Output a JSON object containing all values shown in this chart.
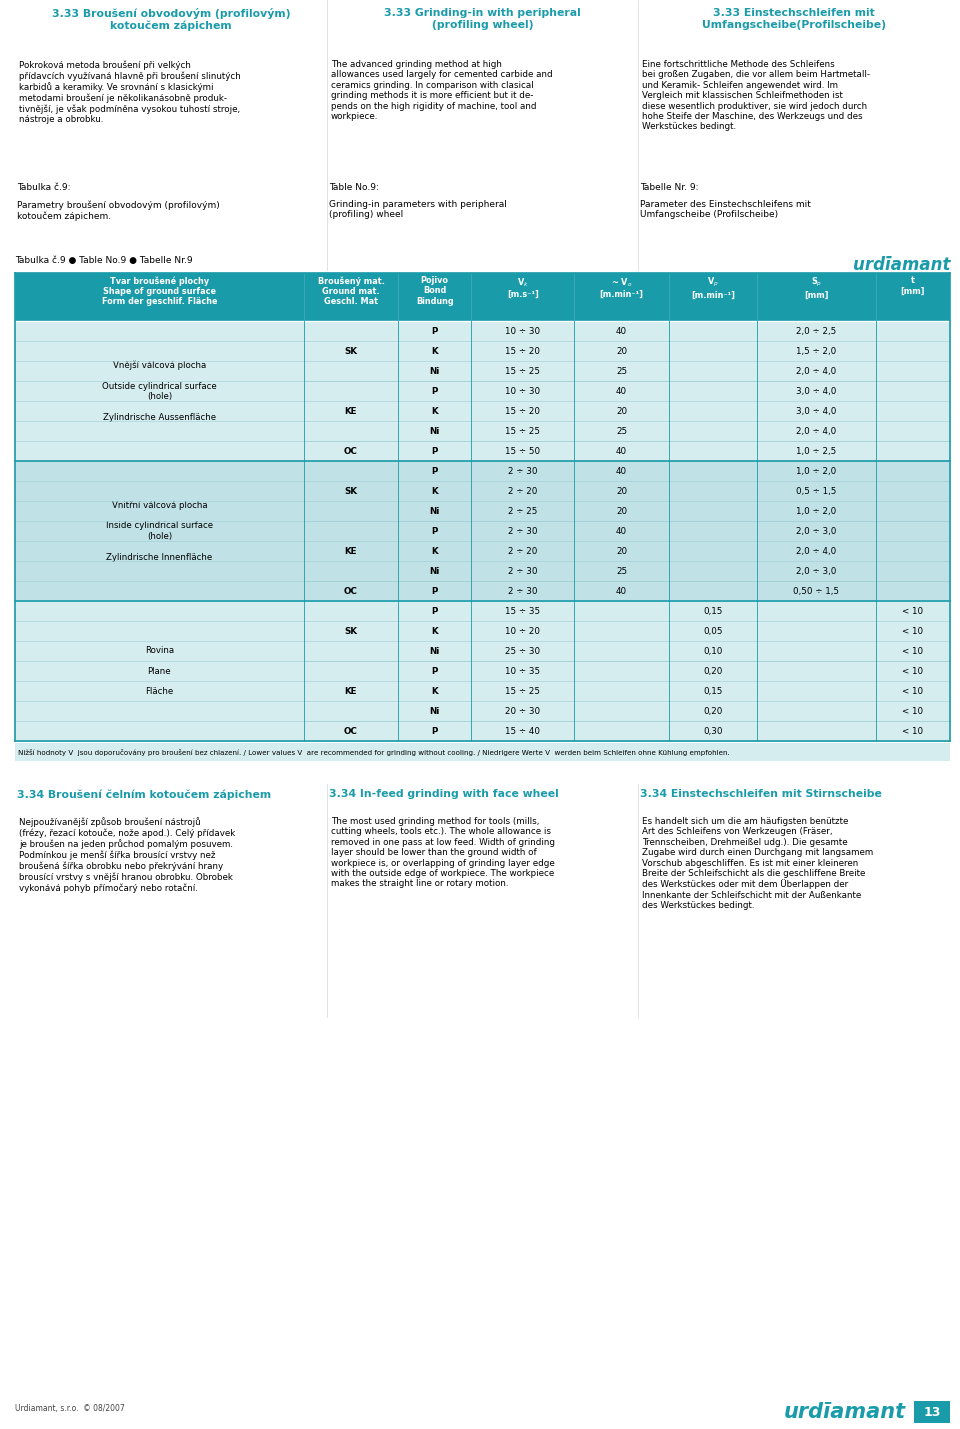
{
  "bg_color": "#ffffff",
  "teal_color": "#1a9baa",
  "teal_header": "#1a9baa",
  "teal_dark": "#0d7a88",
  "teal_light1": "#d6edf0",
  "teal_light2": "#c0e2e7",
  "page_width": 9.6,
  "page_height": 14.29,
  "sec1_title_cz": "3.33 Broušení obvodovým (profilovým)\nkotoučem zápichem",
  "sec1_title_en": "3.33 Grinding-in with peripheral\n(profiling wheel)",
  "sec1_title_de": "3.33 Einstechschleifen mit\nUmfangscheibe(Profilscheibe)",
  "sec1_body_cz": "Pokroková metoda broušení při velkých\npřídavcích využívaná hlavně při broušení slinutých\nkarbidů a keramiky. Ve srovnání s klasickými\nmetodami broušení je několikanásobně produk-\ntivnější, je však podmíněna vysokou tuhostí stroje,\nnástroje a obrobku.",
  "sec1_body_en": "The advanced grinding method at high\nallowances used largely for cemented carbide and\nceramics grinding. In comparison with clasical\ngrinding methods it is more efficient but it de-\npends on the high rigidity of machine, tool and\nworkpiece.",
  "sec1_body_de": "Eine fortschrittliche Methode des Schleifens\nbei großen Zugaben, die vor allem beim Hartmetall-\nund Keramik- Schleifen angewendet wird. Im\nVergleich mit klassischen Schleifmethoden ist\ndiese wesentlich produktiver, sie wird jedoch durch\nhohe Steife der Maschine, des Werkzeugs und des\nWerkstückes bedingt.",
  "lbl_cz": "Tabulka č.9:",
  "lbl_en": "Table No.9:",
  "lbl_de": "Tabelle Nr. 9:",
  "desc_cz": "Parametry broušení obvodovým (profilovým)\nkotoučem zápichem.",
  "desc_en": "Grinding-in parameters with peripheral\n(profiling) wheel",
  "desc_de": "Parameter des Einstechschleifens mit\nUmfangscheibe (Profilscheibe)",
  "table_note": "Tabulka č.9 ● Table No.9 ● Tabelle Nr.9",
  "footnote": "Nižší hodnoty V  jsou doporučovány pro broušení bez chlazení. / Lower values V  are recommended for grinding without cooling. / Niedrigere Werte V  werden beim Schleifen ohne Kühlung empfohlen.",
  "sec2_title_cz": "3.34 Broušení čelním kotoučem zápichem",
  "sec2_title_en": "3.34 In-feed grinding with face wheel",
  "sec2_title_de": "3.34 Einstechschleifen mit Stirnscheibe",
  "sec2_body_cz": "Nejpoužívanější způsob broušení nástrojů\n(frézy, řezací kotouče, nože apod.). Celý přídavek\nje broušen na jeden průchod pomalým posuvem.\nPodmínkou je menší šířka brousící vrstvy než\nbroušená šířka obrobku nebo překrývání hrany\nbrousící vrstvy s vnější hranou obrobku. Obrobek\nvykonává pohyb přímočarý nebo rotační.",
  "sec2_body_en": "The most used grinding method for tools (mills,\ncutting wheels, tools etc.). The whole allowance is\nremoved in one pass at low feed. Width of grinding\nlayer should be lower than the ground width of\nworkpiece is, or overlapping of grinding layer edge\nwith the outside edge of workpiece. The workpiece\nmakes the straight line or rotary motion.",
  "sec2_body_de": "Es handelt sich um die am häufigsten benützte\nArt des Schleifens von Werkzeugen (Fräser,\nTrennscheiben, Drehmeißel udg.). Die gesamte\nZugabe wird durch einen Durchgang mit langsamem\nVorschub abgeschliffen. Es ist mit einer kleineren\nBreite der Schleifschicht als die geschliffene Breite\ndes Werkstückes oder mit dem Überlappen der\nInnenkante der Schleifschicht mit der Außenkante\ndes Werkstückes bedingt.",
  "footer_text": "Urdiamant, s.r.o.  © 08/2007",
  "page_number": "13",
  "rows": [
    {
      "sec": 0,
      "bond": "P",
      "vk": "10 ÷ 30",
      "vo": "40",
      "vp": "",
      "sp": "2,0 ÷ 2,5",
      "t": ""
    },
    {
      "sec": 0,
      "bond": "K",
      "vk": "15 ÷ 20",
      "vo": "20",
      "vp": "",
      "sp": "1,5 ÷ 2,0",
      "t": ""
    },
    {
      "sec": 0,
      "bond": "Ni",
      "vk": "15 ÷ 25",
      "vo": "25",
      "vp": "",
      "sp": "2,0 ÷ 4,0",
      "t": ""
    },
    {
      "sec": 0,
      "bond": "P",
      "vk": "10 ÷ 30",
      "vo": "40",
      "vp": "",
      "sp": "3,0 ÷ 4,0",
      "t": ""
    },
    {
      "sec": 0,
      "bond": "K",
      "vk": "15 ÷ 20",
      "vo": "20",
      "vp": "",
      "sp": "3,0 ÷ 4,0",
      "t": ""
    },
    {
      "sec": 0,
      "bond": "Ni",
      "vk": "15 ÷ 25",
      "vo": "25",
      "vp": "",
      "sp": "2,0 ÷ 4,0",
      "t": ""
    },
    {
      "sec": 0,
      "bond": "P",
      "vk": "15 ÷ 50",
      "vo": "40",
      "vp": "",
      "sp": "1,0 ÷ 2,5",
      "t": ""
    },
    {
      "sec": 1,
      "bond": "P",
      "vk": "2 ÷ 30",
      "vo": "40",
      "vp": "",
      "sp": "1,0 ÷ 2,0",
      "t": ""
    },
    {
      "sec": 1,
      "bond": "K",
      "vk": "2 ÷ 20",
      "vo": "20",
      "vp": "",
      "sp": "0,5 ÷ 1,5",
      "t": ""
    },
    {
      "sec": 1,
      "bond": "Ni",
      "vk": "2 ÷ 25",
      "vo": "20",
      "vp": "",
      "sp": "1,0 ÷ 2,0",
      "t": ""
    },
    {
      "sec": 1,
      "bond": "P",
      "vk": "2 ÷ 30",
      "vo": "40",
      "vp": "",
      "sp": "2,0 ÷ 3,0",
      "t": ""
    },
    {
      "sec": 1,
      "bond": "K",
      "vk": "2 ÷ 20",
      "vo": "20",
      "vp": "",
      "sp": "2,0 ÷ 4,0",
      "t": ""
    },
    {
      "sec": 1,
      "bond": "Ni",
      "vk": "2 ÷ 30",
      "vo": "25",
      "vp": "",
      "sp": "2,0 ÷ 3,0",
      "t": ""
    },
    {
      "sec": 1,
      "bond": "P",
      "vk": "2 ÷ 30",
      "vo": "40",
      "vp": "",
      "sp": "0,50 ÷ 1,5",
      "t": ""
    },
    {
      "sec": 2,
      "bond": "P",
      "vk": "15 ÷ 35",
      "vo": "",
      "vp": "0,15",
      "sp": "",
      "t": "< 10"
    },
    {
      "sec": 2,
      "bond": "K",
      "vk": "10 ÷ 20",
      "vo": "",
      "vp": "0,05",
      "sp": "",
      "t": "< 10"
    },
    {
      "sec": 2,
      "bond": "Ni",
      "vk": "25 ÷ 30",
      "vo": "",
      "vp": "0,10",
      "sp": "",
      "t": "< 10"
    },
    {
      "sec": 2,
      "bond": "P",
      "vk": "10 ÷ 35",
      "vo": "",
      "vp": "0,20",
      "sp": "",
      "t": "< 10"
    },
    {
      "sec": 2,
      "bond": "K",
      "vk": "15 ÷ 25",
      "vo": "",
      "vp": "0,15",
      "sp": "",
      "t": "< 10"
    },
    {
      "sec": 2,
      "bond": "Ni",
      "vk": "20 ÷ 30",
      "vo": "",
      "vp": "0,20",
      "sp": "",
      "t": "< 10"
    },
    {
      "sec": 2,
      "bond": "P",
      "vk": "15 ÷ 40",
      "vo": "",
      "vp": "0,30",
      "sp": "",
      "t": "< 10"
    }
  ],
  "mat_groups": [
    {
      "sec": 0,
      "mat": "SK",
      "rows": [
        0,
        1,
        2
      ]
    },
    {
      "sec": 0,
      "mat": "KE",
      "rows": [
        3,
        4,
        5
      ]
    },
    {
      "sec": 0,
      "mat": "OC",
      "rows": [
        6
      ]
    },
    {
      "sec": 1,
      "mat": "SK",
      "rows": [
        7,
        8,
        9
      ]
    },
    {
      "sec": 1,
      "mat": "KE",
      "rows": [
        10,
        11,
        12
      ]
    },
    {
      "sec": 1,
      "mat": "OC",
      "rows": [
        13
      ]
    },
    {
      "sec": 2,
      "mat": "SK",
      "rows": [
        14,
        15,
        16
      ]
    },
    {
      "sec": 2,
      "mat": "KE",
      "rows": [
        17,
        18,
        19
      ]
    },
    {
      "sec": 2,
      "mat": "OC",
      "rows": [
        20
      ]
    }
  ],
  "shape_texts": [
    "Vnější válcová plocha\n\nOutside cylindrical surface\n(hole)\n\nZylindrische Aussenfläche",
    "Vnitřní válcová plocha\n\nInside cylindrical surface\n(hole)\n\nZylindrische Innenfläche",
    "Rovina\n\nPlane\n\nFläche"
  ]
}
